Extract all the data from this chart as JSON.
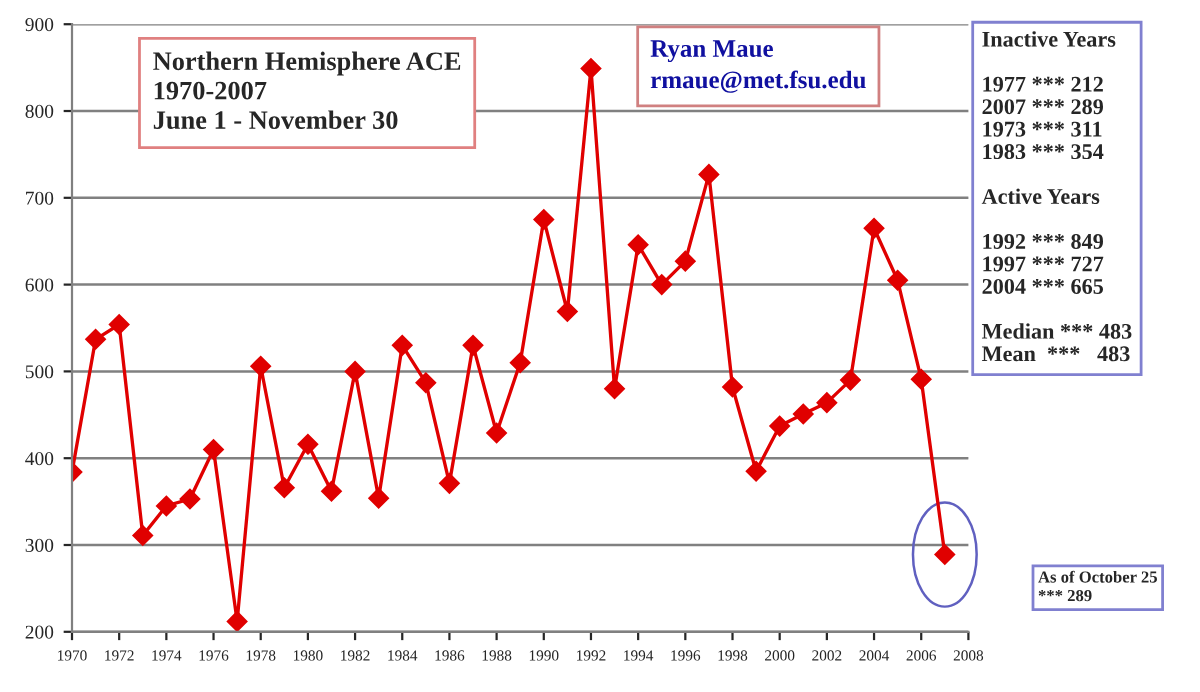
{
  "chart_data": {
    "type": "line",
    "title": "Northern Hemisphere ACE\n1970-2007\nJune 1 - November 30",
    "x": [
      1970,
      1971,
      1972,
      1973,
      1974,
      1975,
      1976,
      1977,
      1978,
      1979,
      1980,
      1981,
      1982,
      1983,
      1984,
      1985,
      1986,
      1987,
      1988,
      1989,
      1990,
      1991,
      1992,
      1993,
      1994,
      1995,
      1996,
      1997,
      1998,
      1999,
      2000,
      2001,
      2002,
      2003,
      2004,
      2005,
      2006,
      2007
    ],
    "series": [
      {
        "color": "#e00000",
        "values": [
          384,
          537,
          554,
          311,
          345,
          353,
          410,
          212,
          506,
          366,
          416,
          362,
          500,
          354,
          530,
          487,
          371,
          530,
          429,
          510,
          675,
          569,
          849,
          480,
          646,
          600,
          627,
          727,
          482,
          385,
          437,
          451,
          464,
          490,
          665,
          605,
          491,
          289
        ]
      }
    ],
    "xlim": [
      1970,
      2008
    ],
    "xticks": [
      1970,
      1972,
      1974,
      1976,
      1978,
      1980,
      1982,
      1984,
      1986,
      1988,
      1990,
      1992,
      1994,
      1996,
      1998,
      2000,
      2002,
      2004,
      2006,
      2008
    ],
    "ylim": [
      200,
      900
    ],
    "yticks": [
      200,
      300,
      400,
      500,
      600,
      700,
      800,
      900
    ],
    "grid": "y",
    "marker": "diamond",
    "line_style": "solid",
    "legend": false,
    "annotations": [
      "Ryan Maue\nrmaue@met.fsu.edu",
      "Inactive Years\n\n1977 *** 212\n2007 *** 289\n1973 *** 311\n1983 *** 354\n\nActive Years\n\n1992 *** 849\n1997 *** 727\n2004 *** 665\n\nMedian *** 483\nMean  ***   483",
      "As of October 25\n*** 289"
    ]
  }
}
